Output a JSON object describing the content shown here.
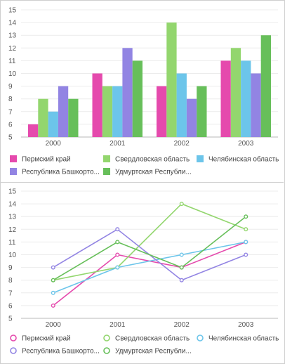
{
  "chart_data": [
    {
      "type": "bar",
      "categories": [
        "2000",
        "2001",
        "2002",
        "2003"
      ],
      "ylim": [
        5,
        15
      ],
      "yticks": [
        5,
        6,
        7,
        8,
        9,
        10,
        11,
        12,
        13,
        14,
        15
      ],
      "grid": true,
      "legend_position": "bottom",
      "series": [
        {
          "name": "Пермский край",
          "color": "#e54aad",
          "values": [
            6,
            10,
            9,
            11
          ]
        },
        {
          "name": "Свердловская область",
          "color": "#93d66e",
          "values": [
            8,
            9,
            14,
            12
          ]
        },
        {
          "name": "Челябинская область",
          "color": "#6cc5ea",
          "values": [
            7,
            9,
            10,
            11
          ]
        },
        {
          "name": "Республика Башкорто...",
          "color": "#9284e3",
          "values": [
            9,
            12,
            8,
            10
          ]
        },
        {
          "name": "Удмуртская Республи...",
          "color": "#67bf5a",
          "values": [
            8,
            11,
            9,
            13
          ]
        }
      ]
    },
    {
      "type": "line",
      "categories": [
        "2000",
        "2001",
        "2002",
        "2003"
      ],
      "ylim": [
        5,
        15
      ],
      "yticks": [
        5,
        6,
        7,
        8,
        9,
        10,
        11,
        12,
        13,
        14,
        15
      ],
      "grid": true,
      "legend_position": "bottom",
      "series": [
        {
          "name": "Пермский край",
          "color": "#e54aad",
          "values": [
            6,
            10,
            9,
            11
          ]
        },
        {
          "name": "Свердловская область",
          "color": "#93d66e",
          "values": [
            8,
            9,
            14,
            12
          ]
        },
        {
          "name": "Челябинская область",
          "color": "#6cc5ea",
          "values": [
            7,
            9,
            10,
            11
          ]
        },
        {
          "name": "Республика Башкорто...",
          "color": "#9284e3",
          "values": [
            9,
            12,
            8,
            10
          ]
        },
        {
          "name": "Удмуртская Республи...",
          "color": "#67bf5a",
          "values": [
            8,
            11,
            9,
            13
          ]
        }
      ]
    }
  ]
}
